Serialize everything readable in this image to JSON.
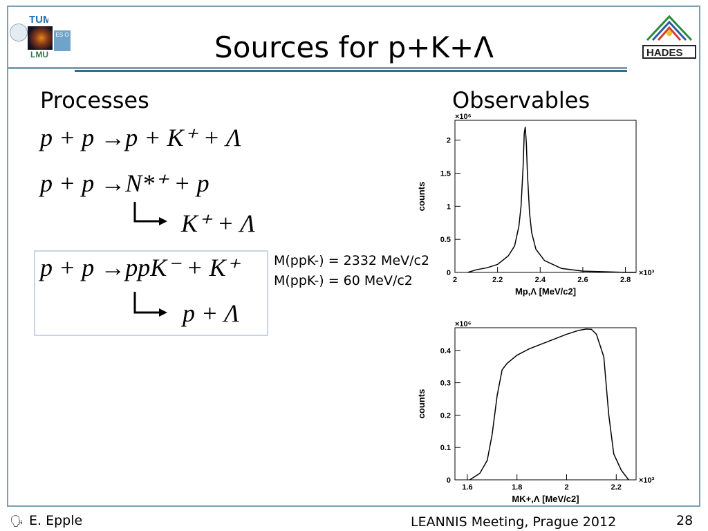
{
  "slide": {
    "title": "Sources for p+K+Λ",
    "processes_heading": "Processes",
    "observables_heading": "Observables",
    "equations": {
      "eq1": "p + p →p + K⁺ + Λ",
      "eq2": "p + p →N*⁺ + p",
      "eq2_decay": "K⁺ + Λ",
      "eq3": "p + p →ppK⁻ + K⁺",
      "eq3_decay": "p + Λ"
    },
    "mass_line1": "M(ppK-) = 2332 MeV/c2",
    "mass_line2": "M(ppK-) = 60 MeV/c2"
  },
  "logos": {
    "left_top": "TUM",
    "left_bottom": "LMU",
    "left_badge": "ES O",
    "right": "HADES"
  },
  "footer": {
    "author": "E. Epple",
    "meeting": "LEANNIS Meeting, Prague 2012",
    "page": "28"
  },
  "colors": {
    "frame": "#7b9fae",
    "title_rule": "#2f6e8c",
    "box_border": "#c9d3e3"
  },
  "chart_data": [
    {
      "type": "line",
      "ylabel": "counts",
      "xlabel": "Mp,Λ [MeV/c2]",
      "x_multiplier": "×10³",
      "y_multiplier": "×10⁶",
      "xlim": [
        2.0,
        2.85
      ],
      "ylim": [
        0,
        2.3
      ],
      "xticks": [
        "2",
        "2.2",
        "2.4",
        "2.6",
        "2.8"
      ],
      "yticks": [
        "0",
        "0.5",
        "1",
        "1.5",
        "2"
      ],
      "x": [
        2.06,
        2.1,
        2.15,
        2.2,
        2.25,
        2.28,
        2.3,
        2.31,
        2.32,
        2.325,
        2.33,
        2.335,
        2.34,
        2.35,
        2.36,
        2.38,
        2.42,
        2.5,
        2.6,
        2.7,
        2.8,
        2.85
      ],
      "y": [
        0.0,
        0.04,
        0.07,
        0.12,
        0.25,
        0.4,
        0.7,
        1.0,
        1.6,
        2.1,
        2.2,
        1.95,
        1.5,
        0.9,
        0.6,
        0.35,
        0.18,
        0.06,
        0.02,
        0.01,
        0.0,
        0.0
      ]
    },
    {
      "type": "line",
      "ylabel": "counts",
      "xlabel": "MK+,Λ [MeV/c2]",
      "x_multiplier": "×10³",
      "y_multiplier": "×10⁶",
      "xlim": [
        1.55,
        2.28
      ],
      "ylim": [
        0,
        0.47
      ],
      "xticks": [
        "1.6",
        "1.8",
        "2",
        "2.2"
      ],
      "yticks": [
        "0",
        "0.1",
        "0.2",
        "0.3",
        "0.4"
      ],
      "x": [
        1.61,
        1.65,
        1.68,
        1.7,
        1.72,
        1.74,
        1.76,
        1.8,
        1.85,
        1.9,
        1.95,
        2.0,
        2.05,
        2.08,
        2.1,
        2.12,
        2.15,
        2.17,
        2.19,
        2.22,
        2.25
      ],
      "y": [
        0.0,
        0.02,
        0.06,
        0.14,
        0.26,
        0.34,
        0.36,
        0.385,
        0.405,
        0.42,
        0.435,
        0.45,
        0.462,
        0.466,
        0.465,
        0.45,
        0.38,
        0.2,
        0.08,
        0.03,
        0.0
      ]
    }
  ]
}
